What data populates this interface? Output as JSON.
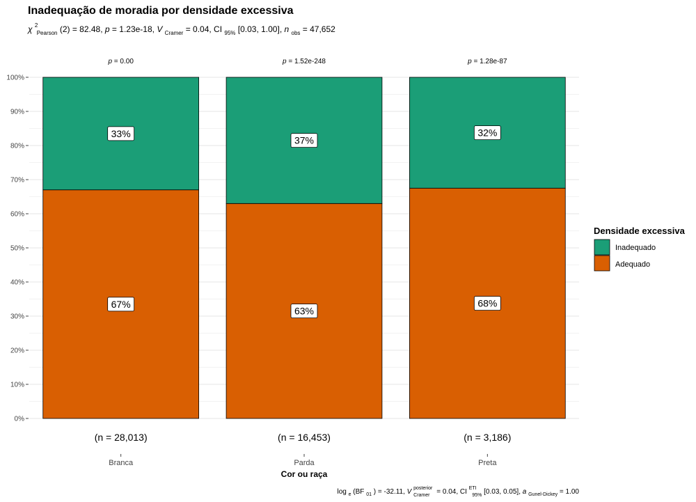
{
  "chart_data": {
    "type": "bar",
    "stacked": true,
    "title": "Inadequação de moradia por densidade excessiva",
    "subtitle": {
      "chi_symbol": "χ",
      "chi_sup": "2",
      "chi_sub": "Pearson",
      "stat": "(2) = 82.48, ",
      "p_label": "p",
      "p_value": " = 1.23e-18, ",
      "v_label": "V",
      "v_sub": "Cramer",
      "v_value": " = 0.04, CI",
      "ci_sub": "95%",
      "ci_value": " [0.03, 1.00], ",
      "n_label": "n",
      "n_sub": "obs",
      "n_value": " = 47,652"
    },
    "xlabel": "Cor ou raça",
    "ylabel": "",
    "ylim": [
      0,
      100
    ],
    "yticks": [
      "0%",
      "10%",
      "20%",
      "30%",
      "40%",
      "50%",
      "60%",
      "70%",
      "80%",
      "90%",
      "100%"
    ],
    "categories": [
      "Branca",
      "Parda",
      "Preta"
    ],
    "series": [
      {
        "name": "Adequado",
        "values": [
          67,
          63,
          67.5
        ],
        "labels": [
          "67%",
          "63%",
          "68%"
        ],
        "color": "#D95F02"
      },
      {
        "name": "Inadequado",
        "values": [
          33,
          37,
          32.5
        ],
        "labels": [
          "33%",
          "37%",
          "32%"
        ],
        "color": "#1B9E77"
      }
    ],
    "pvalues": [
      {
        "label": "p",
        "value": " = 0.00"
      },
      {
        "label": "p",
        "value": " = 1.52e-248"
      },
      {
        "label": "p",
        "value": " = 1.28e-87"
      }
    ],
    "counts": [
      "(n = 28,013)",
      "(n = 16,453)",
      "(n = 3,186)"
    ],
    "legend": {
      "title": "Densidade excessiva",
      "position": "right",
      "items": [
        {
          "label": "Inadequado",
          "color": "#1B9E77"
        },
        {
          "label": "Adequado",
          "color": "#D95F02"
        }
      ]
    },
    "grid": true,
    "caption": {
      "bf_pre": "log",
      "bf_sub_e": "e",
      "bf_mid": "(BF",
      "bf_sub": "01",
      "bf_val": ") = -32.11, ",
      "v_label": "V",
      "v_sup": "posterior",
      "v_sub": "Cramer",
      "v_val": " = 0.04, CI",
      "ci_sup": "ETI",
      "ci_sub": "95%",
      "ci_val": " [0.03, 0.05], ",
      "a_label": "a",
      "a_sub": "Gunel-Dickey",
      "a_val": " = 1.00"
    }
  }
}
